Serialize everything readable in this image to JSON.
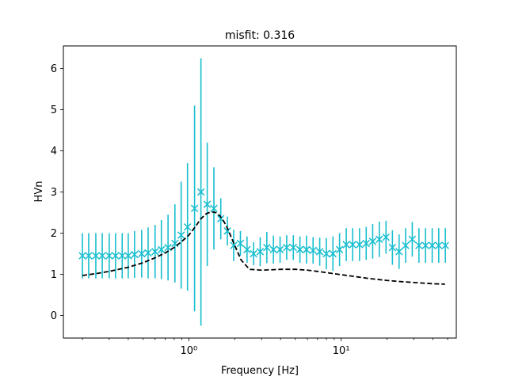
{
  "chart_data": {
    "type": "scatter",
    "title": "misfit: 0.316",
    "xlabel": "Frequency [Hz]",
    "ylabel": "HVn",
    "xscale": "log",
    "xlim": [
      0.15,
      57
    ],
    "ylim": [
      -0.55,
      6.55
    ],
    "x_major_ticks": [
      1,
      10
    ],
    "x_tick_labels": [
      "10⁰",
      "10¹"
    ],
    "y_ticks": [
      0,
      1,
      2,
      3,
      4,
      5,
      6
    ],
    "y_tick_labels": [
      "0",
      "1",
      "2",
      "3",
      "4",
      "5",
      "6"
    ],
    "grid": false,
    "legend": "none",
    "colors": {
      "observed": "#17becf",
      "model": "#000000"
    },
    "series": [
      {
        "kind": "errorbar",
        "x": [
          0.2,
          0.22,
          0.245,
          0.27,
          0.3,
          0.33,
          0.365,
          0.4,
          0.44,
          0.49,
          0.54,
          0.6,
          0.66,
          0.73,
          0.81,
          0.89,
          0.98,
          1.09,
          1.2,
          1.32,
          1.46,
          1.62,
          1.79,
          1.97,
          2.18,
          2.41,
          2.66,
          2.94,
          3.25,
          3.59,
          3.97,
          4.39,
          4.85,
          5.36,
          5.92,
          6.54,
          7.23,
          7.99,
          8.83,
          9.76,
          10.8,
          11.9,
          13.2,
          14.6,
          16.1,
          17.8,
          19.7,
          21.7,
          24.0,
          26.5,
          29.3,
          32.4,
          35.8,
          39.6,
          43.7,
          48.3
        ],
        "y": [
          1.45,
          1.45,
          1.45,
          1.45,
          1.45,
          1.45,
          1.45,
          1.45,
          1.48,
          1.5,
          1.52,
          1.55,
          1.6,
          1.65,
          1.75,
          1.95,
          2.15,
          2.6,
          3.0,
          2.7,
          2.6,
          2.35,
          2.05,
          1.7,
          1.75,
          1.6,
          1.5,
          1.55,
          1.65,
          1.6,
          1.6,
          1.65,
          1.65,
          1.6,
          1.6,
          1.58,
          1.55,
          1.5,
          1.5,
          1.6,
          1.72,
          1.72,
          1.72,
          1.75,
          1.8,
          1.85,
          1.9,
          1.65,
          1.55,
          1.7,
          1.85,
          1.7,
          1.7,
          1.7,
          1.7,
          1.7
        ],
        "yerr": [
          0.55,
          0.55,
          0.55,
          0.55,
          0.55,
          0.55,
          0.55,
          0.55,
          0.57,
          0.58,
          0.62,
          0.65,
          0.72,
          0.8,
          0.95,
          1.3,
          1.55,
          2.5,
          3.25,
          1.5,
          1.0,
          0.5,
          0.35,
          0.38,
          0.3,
          0.32,
          0.28,
          0.35,
          0.38,
          0.34,
          0.32,
          0.3,
          0.3,
          0.32,
          0.34,
          0.32,
          0.34,
          0.38,
          0.42,
          0.4,
          0.4,
          0.4,
          0.4,
          0.4,
          0.42,
          0.43,
          0.4,
          0.42,
          0.42,
          0.42,
          0.42,
          0.42,
          0.42,
          0.42,
          0.42,
          0.42
        ]
      },
      {
        "kind": "line",
        "style": "dashed",
        "x": [
          0.2,
          0.25,
          0.3,
          0.4,
          0.5,
          0.6,
          0.7,
          0.8,
          0.9,
          1.0,
          1.1,
          1.2,
          1.3,
          1.4,
          1.5,
          1.6,
          1.7,
          1.8,
          2.0,
          2.2,
          2.5,
          3.0,
          3.5,
          4.0,
          5.0,
          6.0,
          7.0,
          8.0,
          10.0,
          12.0,
          15.0,
          20.0,
          25.0,
          30.0,
          40.0,
          48.0
        ],
        "y": [
          0.97,
          1.02,
          1.07,
          1.17,
          1.28,
          1.4,
          1.52,
          1.65,
          1.8,
          1.95,
          2.15,
          2.35,
          2.47,
          2.52,
          2.5,
          2.42,
          2.28,
          2.1,
          1.7,
          1.35,
          1.12,
          1.1,
          1.11,
          1.12,
          1.12,
          1.1,
          1.07,
          1.04,
          0.99,
          0.95,
          0.9,
          0.85,
          0.82,
          0.8,
          0.77,
          0.76
        ]
      }
    ]
  }
}
